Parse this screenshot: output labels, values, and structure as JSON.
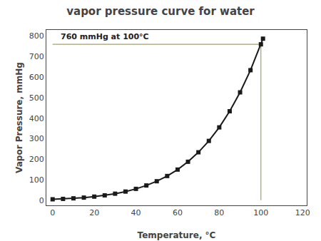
{
  "chart_data": {
    "type": "line",
    "title": "vapor pressure curve for water",
    "xlabel": "Temperature, °C",
    "ylabel": "Vapor Pressure, mmHg",
    "x": [
      0,
      5,
      10,
      15,
      20,
      25,
      30,
      35,
      40,
      45,
      50,
      55,
      60,
      65,
      70,
      75,
      80,
      85,
      90,
      95,
      100,
      101
    ],
    "values": [
      4.58,
      6.54,
      9.21,
      12.79,
      17.54,
      23.76,
      31.82,
      42.18,
      55.32,
      71.88,
      92.51,
      118.04,
      149.38,
      187.54,
      233.7,
      289.1,
      355.1,
      433.6,
      525.8,
      633.9,
      760.0,
      787.5
    ],
    "color": "#1a1a1a",
    "marker": "square",
    "line_style": "solid",
    "xlim": [
      -3,
      122
    ],
    "ylim": [
      -25,
      830
    ],
    "xticks": [
      0,
      20,
      40,
      60,
      80,
      100,
      120
    ],
    "yticks": [
      0,
      100,
      200,
      300,
      400,
      500,
      600,
      700,
      800
    ],
    "grid": false,
    "hline": {
      "y": 760,
      "x": [
        0,
        100
      ],
      "color": "#a0a070"
    },
    "vline": {
      "x": 100,
      "y": [
        0,
        760
      ],
      "color": "#a0a070"
    },
    "annotations": [
      {
        "text": "760 mmHg at 100°C",
        "x": 3,
        "y": 768
      }
    ]
  }
}
